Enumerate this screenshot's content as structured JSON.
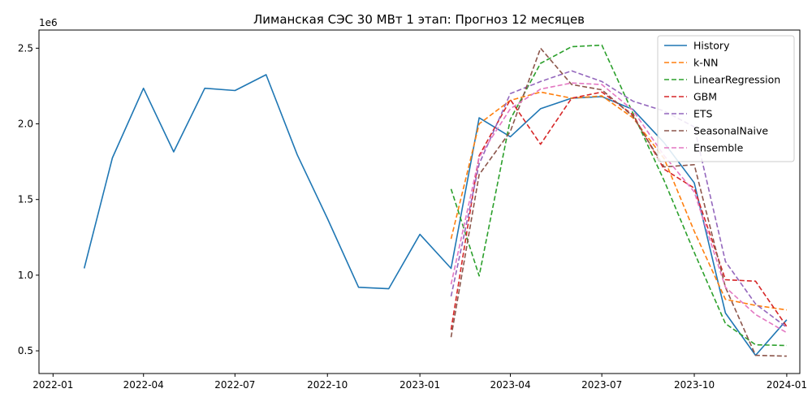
{
  "chart_data": {
    "type": "line",
    "title": "Лиманская СЭС 30 МВт 1 этап: Прогноз 12 месяцев",
    "y_offset_label": "1e6",
    "x_ticks": [
      "2022-01",
      "2022-04",
      "2022-07",
      "2022-10",
      "2023-01",
      "2023-04",
      "2023-07",
      "2023-10",
      "2024-01"
    ],
    "y_ticks": [
      "0.5",
      "1.0",
      "1.5",
      "2.0",
      "2.5"
    ],
    "xlim": [
      "2021-12-18",
      "2024-01-14"
    ],
    "ylim": [
      0.35,
      2.62
    ],
    "y_unit_multiplier": 1000000,
    "grid": false,
    "legend_position": "top-right",
    "series": [
      {
        "name": "History",
        "color": "#1f77b4",
        "dash": "solid",
        "x": [
          "2022-02-01",
          "2022-03-01",
          "2022-04-01",
          "2022-05-01",
          "2022-06-01",
          "2022-07-01",
          "2022-08-01",
          "2022-09-01",
          "2022-10-01",
          "2022-11-01",
          "2022-12-01",
          "2023-01-01",
          "2023-02-01",
          "2023-03-01",
          "2023-04-01",
          "2023-05-01",
          "2023-06-01",
          "2023-07-01",
          "2023-08-01",
          "2023-09-01",
          "2023-10-01",
          "2023-11-01",
          "2023-12-01",
          "2024-01-01"
        ],
        "y": [
          1.045,
          1.775,
          2.235,
          1.815,
          2.235,
          2.22,
          2.325,
          1.795,
          1.375,
          0.92,
          0.91,
          1.27,
          1.045,
          2.04,
          1.915,
          2.1,
          2.17,
          2.18,
          2.095,
          1.875,
          1.61,
          0.75,
          0.47,
          0.705
        ]
      },
      {
        "name": "k-NN",
        "color": "#ff7f0e",
        "dash": "dashed",
        "x": [
          "2023-02-01",
          "2023-03-01",
          "2023-04-01",
          "2023-05-01",
          "2023-06-01",
          "2023-07-01",
          "2023-08-01",
          "2023-09-01",
          "2023-10-01",
          "2023-11-01",
          "2023-12-01",
          "2024-01-01"
        ],
        "y": [
          1.24,
          2.0,
          2.155,
          2.21,
          2.17,
          2.185,
          2.04,
          1.77,
          1.29,
          0.84,
          0.8,
          0.77
        ]
      },
      {
        "name": "LinearRegression",
        "color": "#2ca02c",
        "dash": "dashed",
        "x": [
          "2023-02-01",
          "2023-03-01",
          "2023-04-01",
          "2023-05-01",
          "2023-06-01",
          "2023-07-01",
          "2023-08-01",
          "2023-09-01",
          "2023-10-01",
          "2023-11-01",
          "2023-12-01",
          "2024-01-01"
        ],
        "y": [
          1.57,
          0.995,
          2.03,
          2.4,
          2.51,
          2.52,
          2.07,
          1.625,
          1.15,
          0.68,
          0.54,
          0.535
        ]
      },
      {
        "name": "GBM",
        "color": "#d62728",
        "dash": "dashed",
        "x": [
          "2023-02-01",
          "2023-03-01",
          "2023-04-01",
          "2023-05-01",
          "2023-06-01",
          "2023-07-01",
          "2023-08-01",
          "2023-09-01",
          "2023-10-01",
          "2023-11-01",
          "2023-12-01",
          "2024-01-01"
        ],
        "y": [
          0.64,
          1.79,
          2.16,
          1.865,
          2.17,
          2.21,
          2.06,
          1.7,
          1.575,
          0.97,
          0.96,
          0.66
        ]
      },
      {
        "name": "ETS",
        "color": "#9467bd",
        "dash": "dashed",
        "x": [
          "2023-02-01",
          "2023-03-01",
          "2023-04-01",
          "2023-05-01",
          "2023-06-01",
          "2023-07-01",
          "2023-08-01",
          "2023-09-01",
          "2023-10-01",
          "2023-11-01",
          "2023-12-01",
          "2024-01-01"
        ],
        "y": [
          0.86,
          1.735,
          2.2,
          2.28,
          2.35,
          2.28,
          2.15,
          2.085,
          1.98,
          1.09,
          0.81,
          0.655
        ]
      },
      {
        "name": "SeasonalNaive",
        "color": "#8c564b",
        "dash": "dashed",
        "x": [
          "2023-02-01",
          "2023-03-01",
          "2023-04-01",
          "2023-05-01",
          "2023-06-01",
          "2023-07-01",
          "2023-08-01",
          "2023-09-01",
          "2023-10-01",
          "2023-11-01",
          "2023-12-01",
          "2024-01-01"
        ],
        "y": [
          0.59,
          1.665,
          1.95,
          2.5,
          2.26,
          2.225,
          2.05,
          1.715,
          1.73,
          0.92,
          0.47,
          0.465
        ]
      },
      {
        "name": "Ensemble",
        "color": "#e377c2",
        "dash": "dashed",
        "x": [
          "2023-02-01",
          "2023-03-01",
          "2023-04-01",
          "2023-05-01",
          "2023-06-01",
          "2023-07-01",
          "2023-08-01",
          "2023-09-01",
          "2023-10-01",
          "2023-11-01",
          "2023-12-01",
          "2024-01-01"
        ],
        "y": [
          0.94,
          1.78,
          2.1,
          2.23,
          2.27,
          2.26,
          2.09,
          1.79,
          1.55,
          0.92,
          0.74,
          0.62
        ]
      }
    ]
  }
}
